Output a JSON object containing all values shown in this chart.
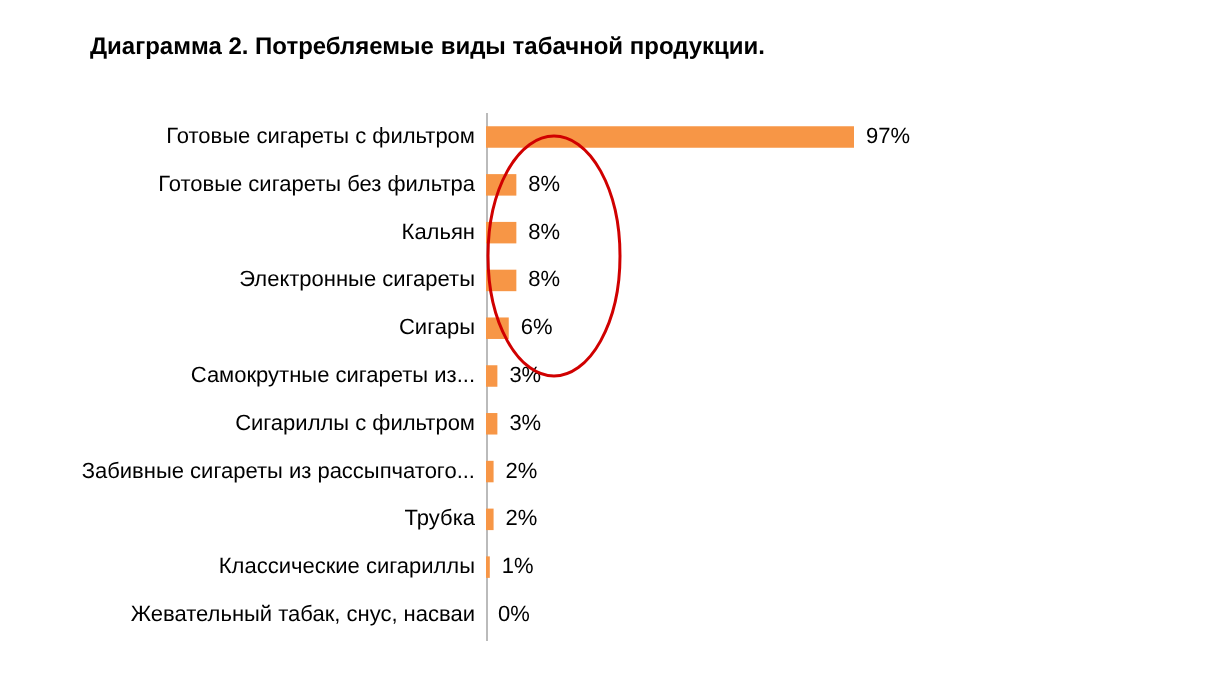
{
  "chart_data": {
    "type": "bar",
    "orientation": "horizontal",
    "title": "Диаграмма 2. Потребляемые  виды табачной продукции.",
    "categories": [
      "Готовые сигареты с фильтром",
      "Готовые сигареты без фильтра",
      "Кальян",
      "Электронные сигареты",
      "Сигары",
      "Самокрутные сигареты из...",
      "Сигариллы с фильтром",
      "Забивные сигареты из рассыпчатого...",
      "Трубка",
      "Классические сигариллы",
      "Жевательный табак, снус, насваи"
    ],
    "values": [
      97,
      8,
      8,
      8,
      6,
      3,
      3,
      2,
      2,
      1,
      0
    ],
    "color": "#f79646",
    "value_labels": [
      "97%",
      "8%",
      "8%",
      "8%",
      "6%",
      "3%",
      "3%",
      "2%",
      "2%",
      "1%",
      "0%"
    ]
  }
}
